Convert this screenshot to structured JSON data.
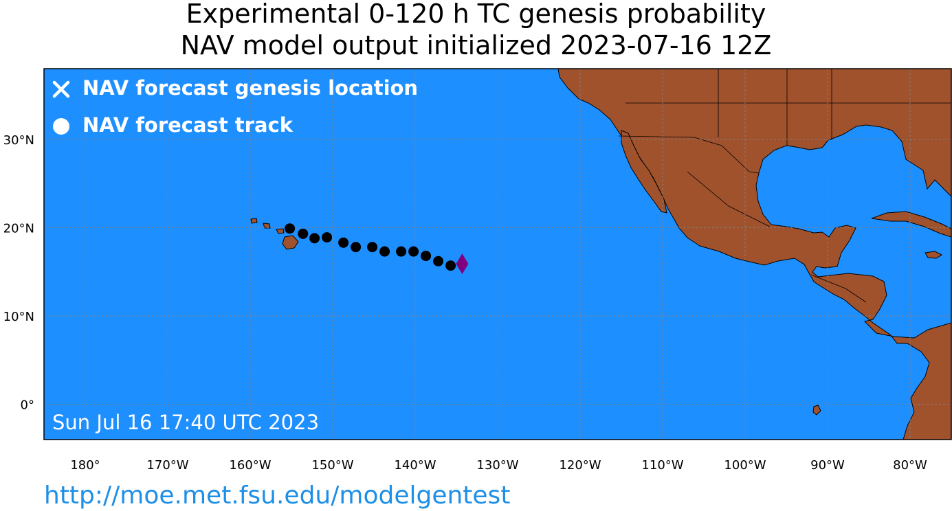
{
  "title_line1": "Experimental 0-120 h TC genesis probability",
  "title_line2": "NAV model output initialized 2023-07-16 12Z",
  "legend": {
    "genesis_label": "NAV forecast genesis location",
    "track_label": "NAV forecast track"
  },
  "timestamp": "Sun Jul 16 17:40 UTC 2023",
  "url": "http://moe.met.fsu.edu/modelgentest",
  "colors": {
    "ocean": "#1e8fff",
    "land": "#a0522d",
    "track": "#000000",
    "genesis_marker": "#800080",
    "grid": "#808080"
  },
  "chart_data": {
    "type": "scatter",
    "x_ticks": [
      "180°",
      "170°W",
      "160°W",
      "150°W",
      "140°W",
      "130°W",
      "120°W",
      "110°W",
      "100°W",
      "90°W",
      "80°W"
    ],
    "y_ticks": [
      "30°N",
      "20°N",
      "10°N",
      "0°"
    ],
    "xlim": [
      -185,
      -75
    ],
    "ylim": [
      -4,
      38
    ],
    "grid": true,
    "legend_position": "top-left",
    "track": [
      {
        "lon": -155.2,
        "lat": 19.9
      },
      {
        "lon": -153.6,
        "lat": 19.3
      },
      {
        "lon": -152.2,
        "lat": 18.8
      },
      {
        "lon": -150.7,
        "lat": 18.9
      },
      {
        "lon": -148.7,
        "lat": 18.3
      },
      {
        "lon": -147.2,
        "lat": 17.8
      },
      {
        "lon": -145.2,
        "lat": 17.8
      },
      {
        "lon": -143.7,
        "lat": 17.3
      },
      {
        "lon": -141.7,
        "lat": 17.3
      },
      {
        "lon": -140.2,
        "lat": 17.3
      },
      {
        "lon": -138.7,
        "lat": 16.8
      },
      {
        "lon": -137.2,
        "lat": 16.2
      },
      {
        "lon": -135.7,
        "lat": 15.7
      }
    ],
    "genesis": {
      "lon": -134.3,
      "lat": 15.9,
      "marker": "diamond"
    }
  }
}
